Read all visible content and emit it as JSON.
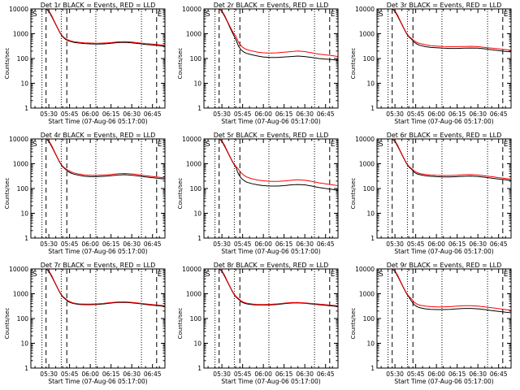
{
  "figure": {
    "layout": {
      "rows": 3,
      "cols": 3
    },
    "colors": {
      "events": "#000000",
      "lld": "#ff0000",
      "axes": "#000000",
      "background": "#ffffff"
    }
  },
  "shared": {
    "y_tick_labels": [
      "1",
      "10",
      "100",
      "1000",
      "10000"
    ],
    "y_ticks": [
      1,
      10,
      100,
      1000,
      10000
    ],
    "x_tick_labels": [
      "05:30",
      "05:45",
      "06:00",
      "06:15",
      "06:30",
      "06:45"
    ],
    "x_ticks_min": [
      30,
      45,
      60,
      75,
      90,
      105
    ],
    "ylabel": "Counts/sec",
    "xlabel": "Start Time (07-Aug-06 05:17:00)",
    "marker_label": "S",
    "marker_label_right": "E",
    "start_minute": 17,
    "end_minute": 114,
    "dotted_lines_min": [
      25,
      39,
      64,
      97
    ],
    "dashed_lines_min": [
      28,
      43,
      108
    ]
  },
  "chart_data": [
    {
      "type": "line",
      "yscale": "log",
      "ylim": [
        1,
        10000
      ],
      "xlim": [
        17,
        114
      ],
      "title": "Det 1r BLACK = Events, RED = LLD",
      "x": [
        17,
        18,
        19,
        20,
        22,
        24,
        26,
        28,
        30,
        32,
        34,
        36,
        38,
        40,
        42,
        44,
        46,
        48,
        52,
        56,
        60,
        65,
        70,
        75,
        80,
        85,
        90,
        95,
        100,
        105,
        110,
        114
      ],
      "series": [
        {
          "name": "BLACK = Events",
          "values": [
            10000,
            10000,
            10000,
            10000,
            10000,
            10000,
            10000,
            10000,
            8000,
            5000,
            3000,
            1800,
            1100,
            750,
            600,
            520,
            480,
            450,
            420,
            400,
            390,
            380,
            390,
            410,
            440,
            450,
            430,
            400,
            370,
            350,
            330,
            310
          ]
        },
        {
          "name": "RED = LLD",
          "values": [
            10000,
            10000,
            10000,
            10000,
            10000,
            10000,
            10000,
            10000,
            8500,
            5500,
            3200,
            1900,
            1150,
            800,
            640,
            560,
            510,
            480,
            450,
            430,
            420,
            410,
            420,
            440,
            470,
            480,
            460,
            430,
            400,
            380,
            360,
            340
          ]
        }
      ]
    },
    {
      "type": "line",
      "yscale": "log",
      "ylim": [
        1,
        10000
      ],
      "xlim": [
        17,
        114
      ],
      "title": "Det 2r BLACK = Events, RED = LLD",
      "x": [
        17,
        18,
        19,
        20,
        22,
        24,
        26,
        28,
        30,
        32,
        34,
        36,
        38,
        40,
        42,
        44,
        46,
        48,
        52,
        56,
        60,
        65,
        70,
        75,
        80,
        85,
        90,
        95,
        100,
        105,
        110,
        114
      ],
      "series": [
        {
          "name": "BLACK = Events",
          "values": [
            10000,
            10000,
            10000,
            10000,
            10000,
            10000,
            10000,
            10000,
            8000,
            5000,
            3000,
            1700,
            1000,
            600,
            320,
            220,
            180,
            160,
            140,
            125,
            115,
            110,
            110,
            115,
            120,
            125,
            120,
            110,
            100,
            95,
            90,
            85
          ]
        },
        {
          "name": "RED = LLD",
          "values": [
            10000,
            10000,
            10000,
            10000,
            10000,
            10000,
            10000,
            10000,
            8500,
            5500,
            3200,
            1900,
            1150,
            800,
            460,
            320,
            260,
            230,
            200,
            180,
            170,
            165,
            170,
            180,
            190,
            200,
            190,
            170,
            150,
            140,
            130,
            120
          ]
        }
      ]
    },
    {
      "type": "line",
      "yscale": "log",
      "ylim": [
        1,
        10000
      ],
      "xlim": [
        17,
        114
      ],
      "title": "Det 3r BLACK = Events, RED = LLD",
      "x": [
        17,
        18,
        19,
        20,
        22,
        24,
        26,
        28,
        30,
        32,
        34,
        36,
        38,
        40,
        42,
        44,
        46,
        48,
        52,
        56,
        60,
        65,
        70,
        75,
        80,
        85,
        90,
        95,
        100,
        105,
        110,
        114
      ],
      "series": [
        {
          "name": "BLACK = Events",
          "values": [
            10000,
            10000,
            10000,
            10000,
            10000,
            10000,
            10000,
            10000,
            8000,
            5000,
            3000,
            1800,
            1100,
            750,
            600,
            450,
            380,
            340,
            300,
            280,
            270,
            260,
            255,
            255,
            260,
            265,
            260,
            245,
            225,
            210,
            195,
            185
          ]
        },
        {
          "name": "RED = LLD",
          "values": [
            10000,
            10000,
            10000,
            10000,
            10000,
            10000,
            10000,
            10000,
            8500,
            5500,
            3200,
            1900,
            1150,
            800,
            640,
            520,
            440,
            400,
            360,
            330,
            315,
            305,
            300,
            300,
            305,
            310,
            300,
            280,
            260,
            245,
            230,
            215
          ]
        }
      ]
    },
    {
      "type": "line",
      "yscale": "log",
      "ylim": [
        1,
        10000
      ],
      "xlim": [
        17,
        114
      ],
      "title": "Det 4r BLACK = Events, RED = LLD",
      "x": [
        17,
        18,
        19,
        20,
        22,
        24,
        26,
        28,
        30,
        32,
        34,
        36,
        38,
        40,
        42,
        44,
        46,
        48,
        52,
        56,
        60,
        65,
        70,
        75,
        80,
        85,
        90,
        95,
        100,
        105,
        110,
        114
      ],
      "series": [
        {
          "name": "BLACK = Events",
          "values": [
            10000,
            10000,
            10000,
            10000,
            10000,
            10000,
            10000,
            10000,
            8000,
            5000,
            3000,
            1800,
            1100,
            750,
            600,
            480,
            420,
            380,
            340,
            310,
            300,
            300,
            310,
            330,
            350,
            360,
            345,
            320,
            295,
            275,
            255,
            240
          ]
        },
        {
          "name": "RED = LLD",
          "values": [
            10000,
            10000,
            10000,
            10000,
            10000,
            10000,
            10000,
            10000,
            8500,
            5500,
            3200,
            1900,
            1150,
            800,
            640,
            540,
            470,
            430,
            380,
            350,
            340,
            340,
            350,
            370,
            395,
            405,
            390,
            360,
            330,
            305,
            285,
            265
          ]
        }
      ]
    },
    {
      "type": "line",
      "yscale": "log",
      "ylim": [
        1,
        10000
      ],
      "xlim": [
        17,
        114
      ],
      "title": "Det 5r BLACK = Events, RED = LLD",
      "x": [
        17,
        18,
        19,
        20,
        22,
        24,
        26,
        28,
        30,
        32,
        34,
        36,
        38,
        40,
        42,
        44,
        46,
        48,
        52,
        56,
        60,
        65,
        70,
        75,
        80,
        85,
        90,
        95,
        100,
        105,
        110,
        114
      ],
      "series": [
        {
          "name": "BLACK = Events",
          "values": [
            10000,
            10000,
            10000,
            10000,
            10000,
            10000,
            10000,
            10000,
            8000,
            5000,
            3000,
            1800,
            1100,
            750,
            380,
            260,
            210,
            180,
            155,
            140,
            130,
            125,
            125,
            130,
            140,
            145,
            140,
            125,
            110,
            100,
            92,
            85
          ]
        },
        {
          "name": "RED = LLD",
          "values": [
            10000,
            10000,
            10000,
            10000,
            10000,
            10000,
            10000,
            10000,
            8500,
            5500,
            3200,
            1900,
            1150,
            800,
            600,
            430,
            340,
            290,
            245,
            220,
            205,
            195,
            195,
            200,
            215,
            225,
            215,
            195,
            170,
            155,
            140,
            130
          ]
        }
      ]
    },
    {
      "type": "line",
      "yscale": "log",
      "ylim": [
        1,
        10000
      ],
      "xlim": [
        17,
        114
      ],
      "title": "Det 6r BLACK = Events, RED = LLD",
      "x": [
        17,
        18,
        19,
        20,
        22,
        24,
        26,
        28,
        30,
        32,
        34,
        36,
        38,
        40,
        42,
        44,
        46,
        48,
        52,
        56,
        60,
        65,
        70,
        75,
        80,
        85,
        90,
        95,
        100,
        105,
        110,
        114
      ],
      "series": [
        {
          "name": "BLACK = Events",
          "values": [
            10000,
            10000,
            10000,
            10000,
            10000,
            10000,
            10000,
            10000,
            8000,
            5000,
            3000,
            1800,
            1100,
            750,
            600,
            450,
            390,
            360,
            330,
            310,
            300,
            295,
            295,
            300,
            310,
            315,
            305,
            285,
            260,
            240,
            225,
            210
          ]
        },
        {
          "name": "RED = LLD",
          "values": [
            10000,
            10000,
            10000,
            10000,
            10000,
            10000,
            10000,
            10000,
            8500,
            5500,
            3200,
            1900,
            1150,
            800,
            640,
            510,
            440,
            400,
            370,
            350,
            340,
            335,
            335,
            345,
            360,
            365,
            350,
            325,
            300,
            275,
            255,
            240
          ]
        }
      ]
    },
    {
      "type": "line",
      "yscale": "log",
      "ylim": [
        1,
        10000
      ],
      "xlim": [
        17,
        114
      ],
      "title": "Det 7r BLACK = Events, RED = LLD",
      "x": [
        17,
        18,
        19,
        20,
        22,
        24,
        26,
        28,
        30,
        32,
        34,
        36,
        38,
        40,
        42,
        44,
        46,
        48,
        52,
        56,
        60,
        65,
        70,
        75,
        80,
        85,
        90,
        95,
        100,
        105,
        110,
        114
      ],
      "series": [
        {
          "name": "BLACK = Events",
          "values": [
            10000,
            10000,
            10000,
            10000,
            10000,
            10000,
            10000,
            10000,
            8000,
            5000,
            3000,
            1800,
            1100,
            750,
            600,
            480,
            430,
            400,
            370,
            360,
            360,
            370,
            390,
            420,
            445,
            450,
            430,
            400,
            370,
            345,
            325,
            305
          ]
        },
        {
          "name": "RED = LLD",
          "values": [
            10000,
            10000,
            10000,
            10000,
            10000,
            10000,
            10000,
            10000,
            8500,
            5500,
            3200,
            1900,
            1150,
            800,
            640,
            520,
            460,
            420,
            390,
            380,
            380,
            390,
            410,
            440,
            465,
            470,
            450,
            420,
            390,
            365,
            345,
            325
          ]
        }
      ]
    },
    {
      "type": "line",
      "yscale": "log",
      "ylim": [
        1,
        10000
      ],
      "xlim": [
        17,
        114
      ],
      "title": "Det 8r BLACK = Events, RED = LLD",
      "x": [
        17,
        18,
        19,
        20,
        22,
        24,
        26,
        28,
        30,
        32,
        34,
        36,
        38,
        40,
        42,
        44,
        46,
        48,
        52,
        56,
        60,
        65,
        70,
        75,
        80,
        85,
        90,
        95,
        100,
        105,
        110,
        114
      ],
      "series": [
        {
          "name": "BLACK = Events",
          "values": [
            10000,
            10000,
            10000,
            10000,
            10000,
            10000,
            10000,
            10000,
            8000,
            5000,
            3000,
            1800,
            1100,
            750,
            600,
            470,
            420,
            390,
            360,
            350,
            350,
            355,
            370,
            395,
            420,
            425,
            410,
            385,
            360,
            340,
            320,
            305
          ]
        },
        {
          "name": "RED = LLD",
          "values": [
            10000,
            10000,
            10000,
            10000,
            10000,
            10000,
            10000,
            10000,
            8500,
            5500,
            3200,
            1900,
            1150,
            800,
            640,
            510,
            450,
            415,
            385,
            370,
            370,
            375,
            390,
            415,
            440,
            445,
            430,
            405,
            380,
            360,
            340,
            325
          ]
        }
      ]
    },
    {
      "type": "line",
      "yscale": "log",
      "ylim": [
        1,
        10000
      ],
      "xlim": [
        17,
        114
      ],
      "title": "Det 9r BLACK = Events, RED = LLD",
      "x": [
        17,
        18,
        19,
        20,
        22,
        24,
        26,
        28,
        30,
        32,
        34,
        36,
        38,
        40,
        42,
        44,
        46,
        48,
        52,
        56,
        60,
        65,
        70,
        75,
        80,
        85,
        90,
        95,
        100,
        105,
        110,
        114
      ],
      "series": [
        {
          "name": "BLACK = Events",
          "values": [
            10000,
            10000,
            10000,
            10000,
            10000,
            10000,
            10000,
            10000,
            8000,
            5000,
            3000,
            1800,
            1100,
            750,
            500,
            360,
            300,
            270,
            245,
            235,
            230,
            230,
            235,
            245,
            255,
            255,
            245,
            230,
            210,
            195,
            180,
            170
          ]
        },
        {
          "name": "RED = LLD",
          "values": [
            10000,
            10000,
            10000,
            10000,
            10000,
            10000,
            10000,
            10000,
            8500,
            5500,
            3200,
            1900,
            1150,
            800,
            620,
            450,
            380,
            345,
            315,
            300,
            295,
            295,
            300,
            315,
            330,
            330,
            315,
            295,
            270,
            250,
            230,
            215
          ]
        }
      ]
    }
  ]
}
